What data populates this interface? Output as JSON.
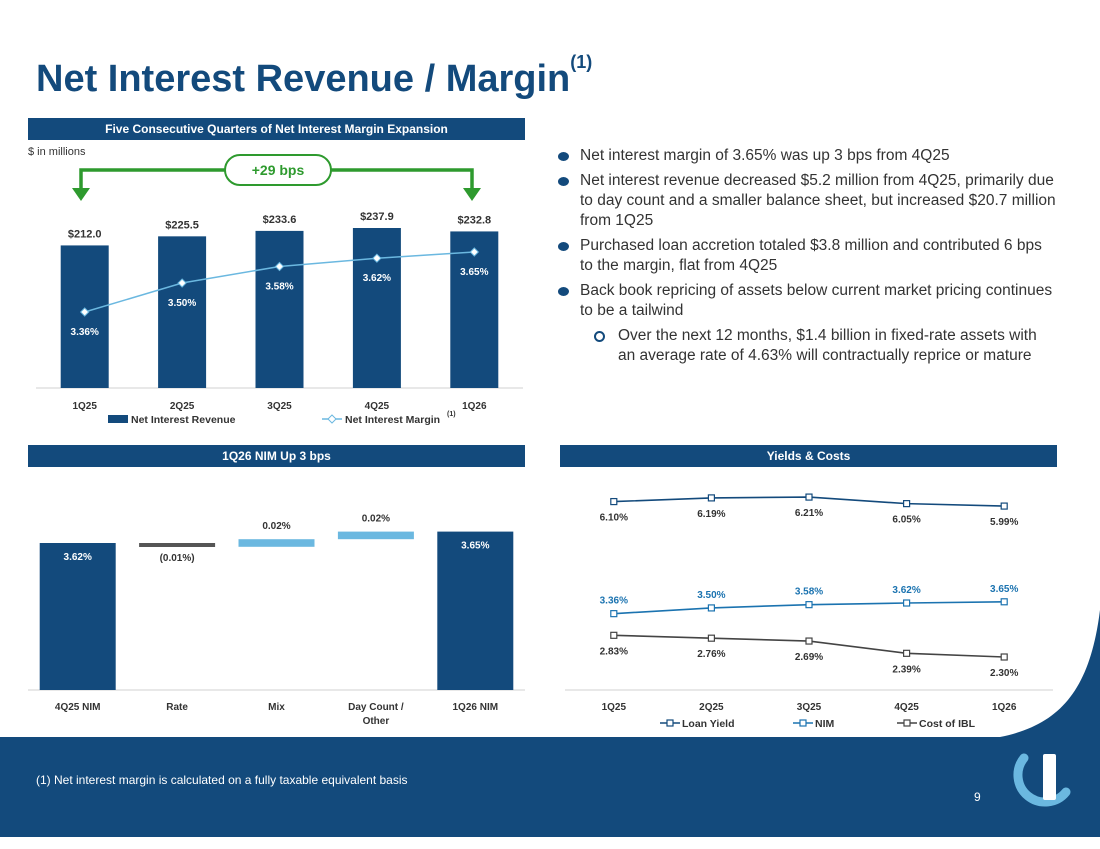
{
  "page": {
    "title": "Net Interest Revenue / Margin",
    "title_sup": "(1)",
    "units_note": "$ in millions",
    "page_number": "9",
    "footnote": "(1) Net interest margin is calculated on a fully taxable equivalent basis",
    "brand_color": "#134A7C",
    "accent_color": "#6BB8E0"
  },
  "bullets": [
    {
      "text": "Net interest margin of 3.65% was up 3 bps from 4Q25",
      "level": 1
    },
    {
      "text": "Net interest revenue decreased $5.2 million from 4Q25, primarily due to day count and a smaller balance sheet, but increased $20.7 million from 1Q25",
      "level": 1
    },
    {
      "text": "Purchased loan accretion totaled $3.8 million and contributed 6 bps to the margin, flat from 4Q25",
      "level": 1
    },
    {
      "text": "Back book repricing of assets below current market pricing continues to be a tailwind",
      "level": 1
    },
    {
      "text": "Over the next 12 months, $1.4 billion in fixed-rate assets with an average rate of 4.63% will contractually reprice or mature",
      "level": 2
    }
  ],
  "chart_data": [
    {
      "type": "bar",
      "title": "Five Consecutive Quarters of Net Interest Margin Expansion",
      "categories": [
        "1Q25",
        "2Q25",
        "3Q25",
        "4Q25",
        "1Q26"
      ],
      "series": [
        {
          "name": "Net Interest Revenue",
          "type": "bar",
          "values": [
            212.0,
            225.5,
            233.6,
            237.9,
            232.8
          ],
          "labels": [
            "$212.0",
            "$225.5",
            "$233.6",
            "$237.9",
            "$232.8"
          ],
          "color": "#134A7C"
        },
        {
          "name": "Net Interest Margin",
          "name_sup": "(1)",
          "type": "line",
          "values": [
            3.36,
            3.5,
            3.58,
            3.62,
            3.65
          ],
          "labels": [
            "3.36%",
            "3.50%",
            "3.58%",
            "3.62%",
            "3.65%"
          ],
          "color": "#6BB8E0"
        }
      ],
      "annotation": "+29 bps",
      "legend": "bottom"
    },
    {
      "type": "bar",
      "subtype": "waterfall",
      "title": "1Q26 NIM Up 3 bps",
      "categories": [
        "4Q25 NIM",
        "Rate",
        "Mix",
        "Day Count / Other",
        "1Q26 NIM"
      ],
      "values": [
        3.62,
        -0.01,
        0.02,
        0.02,
        3.65
      ],
      "labels": [
        "3.62%",
        "(0.01%)",
        "0.02%",
        "0.02%",
        "3.65%"
      ],
      "kinds": [
        "total",
        "delta",
        "delta",
        "delta",
        "total"
      ],
      "colors": {
        "total": "#134A7C",
        "negative": "#555555",
        "positive": "#6BB8E0"
      }
    },
    {
      "type": "line",
      "title": "Yields & Costs",
      "categories": [
        "1Q25",
        "2Q25",
        "3Q25",
        "4Q25",
        "1Q26"
      ],
      "series": [
        {
          "name": "Loan Yield",
          "values": [
            6.1,
            6.19,
            6.21,
            6.05,
            5.99
          ],
          "labels": [
            "6.10%",
            "6.19%",
            "6.21%",
            "6.05%",
            "5.99%"
          ],
          "color": "#134A7C"
        },
        {
          "name": "NIM",
          "values": [
            3.36,
            3.5,
            3.58,
            3.62,
            3.65
          ],
          "labels": [
            "3.36%",
            "3.50%",
            "3.58%",
            "3.62%",
            "3.65%"
          ],
          "color": "#1B73B0"
        },
        {
          "name": "Cost of IBL",
          "values": [
            2.83,
            2.76,
            2.69,
            2.39,
            2.3
          ],
          "labels": [
            "2.83%",
            "2.76%",
            "2.69%",
            "2.39%",
            "2.30%"
          ],
          "color": "#444444"
        }
      ],
      "legend": "bottom"
    }
  ]
}
